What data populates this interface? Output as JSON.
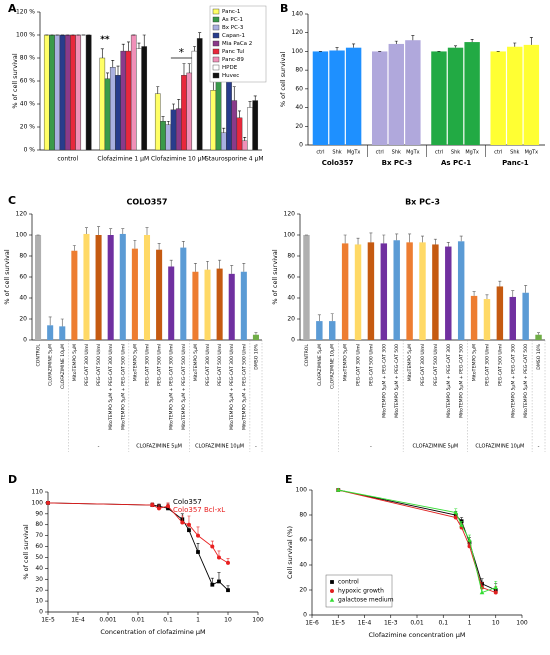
{
  "chart_data": [
    {
      "panel": "A",
      "type": "grouped-bar",
      "ylabel": "% of cell survival",
      "categories": [
        "control",
        "Clofazimine 1 μM",
        "Clofazimine 10 μM",
        "Staurosporine 4 μM"
      ],
      "series": [
        {
          "name": "Panc-1",
          "color": "#ffff66",
          "values": [
            100,
            80,
            49,
            52
          ],
          "errors": [
            0,
            8,
            6,
            10
          ]
        },
        {
          "name": "As PC-1",
          "color": "#3a9a4a",
          "values": [
            100,
            62,
            25,
            65
          ],
          "errors": [
            0,
            5,
            4,
            8
          ]
        },
        {
          "name": "Bx PC-3",
          "color": "#aab0e0",
          "values": [
            100,
            72,
            22,
            15
          ],
          "errors": [
            0,
            6,
            3,
            4
          ]
        },
        {
          "name": "Capan-1",
          "color": "#283c8c",
          "values": [
            100,
            65,
            35,
            79
          ],
          "errors": [
            0,
            8,
            5,
            6
          ]
        },
        {
          "name": "Mia PaCa 2",
          "color": "#8a3a8a",
          "values": [
            100,
            86,
            36,
            43
          ],
          "errors": [
            0,
            6,
            8,
            12
          ]
        },
        {
          "name": "Panc Tul",
          "color": "#e8283c",
          "values": [
            100,
            86,
            65,
            28
          ],
          "errors": [
            0,
            8,
            10,
            6
          ]
        },
        {
          "name": "Panc-89",
          "color": "#f090b8",
          "values": [
            100,
            100,
            67,
            8
          ],
          "errors": [
            0,
            0,
            8,
            3
          ]
        },
        {
          "name": "HPDE",
          "color": "#ffffff",
          "values": [
            100,
            88,
            86,
            37
          ],
          "errors": [
            0,
            5,
            4,
            5
          ]
        },
        {
          "name": "Huvec",
          "color": "#111111",
          "values": [
            100,
            90,
            97,
            43
          ],
          "errors": [
            0,
            10,
            5,
            4
          ]
        }
      ],
      "annotations": [
        "**",
        "*"
      ],
      "legend": "top-right",
      "ylim": [
        0,
        120
      ],
      "yticks": [
        {
          "value": 0,
          "label": "0 %"
        },
        {
          "value": 20,
          "label": "20 %"
        },
        {
          "value": 40,
          "label": "40 %"
        },
        {
          "value": 60,
          "label": "60 %"
        },
        {
          "value": 80,
          "label": "80 %"
        },
        {
          "value": 100,
          "label": "100 %"
        },
        {
          "value": 120,
          "label": "120 %"
        }
      ]
    },
    {
      "panel": "B",
      "type": "bar",
      "ylabel": "% of cell survival",
      "categories": [
        "ctrl",
        "Shk",
        "MgTx"
      ],
      "series": [
        {
          "name": "Colo357",
          "color": "#1e90ff",
          "values": [
            100,
            101,
            104
          ],
          "errors": [
            0,
            3,
            4
          ]
        },
        {
          "name": "Bx PC-3",
          "color": "#b0a8dc",
          "values": [
            100,
            108,
            112
          ],
          "errors": [
            0,
            3,
            5
          ]
        },
        {
          "name": "As PC-1",
          "color": "#22aa44",
          "values": [
            100,
            104,
            110
          ],
          "errors": [
            0,
            2,
            3
          ]
        },
        {
          "name": "Panc-1",
          "color": "#ffff33",
          "values": [
            100,
            105,
            107
          ],
          "errors": [
            0,
            4,
            8
          ]
        }
      ],
      "ylim": [
        0,
        140
      ],
      "yticks": [
        0,
        20,
        40,
        60,
        80,
        100,
        120,
        140
      ]
    },
    {
      "panel": "C",
      "type": "bar",
      "title": "COLO357",
      "ylabel": "% of cell survival",
      "categories": [
        "CONTROL",
        "CLOFAZIMINE 5μM",
        "CLOFAZIMINE 10μM",
        "MitoTEMPO 5μM",
        "PEG-CAT 300 U/ml",
        "PEG-CAT 500 U/ml",
        "MitoTEMPO 5μM + PEG-CAT 300 U/ml",
        "MitoTEMPO 5μM + PEG-CAT 500 U/ml",
        "MitoTEMPO 5μM",
        "PEG-CAT 300 U/ml",
        "PEG-CAT 500 U/ml",
        "MitoTEMPO 5μM + PEG-CAT 300 U/ml",
        "MitoTEMPO 5μM + PEG-CAT 500 U/ml",
        "MitoTEMPO 5μM",
        "PEG-CAT 300 U/ml",
        "PEG-CAT 500 U/ml",
        "MitoTEMPO 5μM + PEG-CAT 300 U/ml",
        "MitoTEMPO 5μM + PEG-CAT 500 U/ml",
        "DMSO 10%"
      ],
      "values": [
        100,
        14,
        13,
        85,
        101,
        100,
        100,
        101,
        87,
        100,
        86,
        70,
        88,
        65,
        67,
        68,
        63,
        65,
        5
      ],
      "errors": [
        0,
        8,
        7,
        5,
        6,
        8,
        6,
        5,
        8,
        7,
        6,
        6,
        6,
        8,
        8,
        8,
        8,
        8,
        2
      ],
      "colors": [
        "#b0b0b0",
        "#5b9bd5",
        "#5b9bd5",
        "#ed7d31",
        "#ffd966",
        "#c55a11",
        "#7030a0",
        "#5b9bd5",
        "#ed7d31",
        "#ffd966",
        "#c55a11",
        "#7030a0",
        "#5b9bd5",
        "#ed7d31",
        "#ffd966",
        "#c55a11",
        "#7030a0",
        "#5b9bd5",
        "#70ad47"
      ],
      "groups": [
        "-",
        "CLOFAZIMINE 5μM",
        "CLOFAZIMINE 10μM",
        "-"
      ],
      "ylim": [
        0,
        120
      ],
      "yticks": [
        0,
        20,
        40,
        60,
        80,
        100,
        120
      ]
    },
    {
      "type": "bar",
      "title": "Bx PC-3",
      "ylabel": "% of cell survival",
      "categories": [
        "CONTROL",
        "CLOFAZIMINE 5μM",
        "CLOFAZIMINE 10μM",
        "MitoTEMPO 5μM",
        "PEG-CAT 300 U/ml",
        "PEG-CAT 500 U/ml",
        "MitoTEMPO 5μM + PEG-CAT 300",
        "MitoTEMPO 5μM + PEG-CAT 500",
        "MitoTEMPO 5μM",
        "PEG-CAT 300 U/ml",
        "PEG-CAT 500 U/ml",
        "MitoTEMPO 5μM + PEG-CAT 300",
        "MitoTEMPO 5μM + PEG-CAT 500",
        "MitoTEMPO 5μM",
        "PEG-CAT 300 U/ml",
        "PEG-CAT 500 U/ml",
        "MitoTEMPO 5μM + PEG-CAT 300",
        "MitoTEMPO 5μM + PEG-CAT 500",
        "DMSO 10%"
      ],
      "values": [
        100,
        18,
        18,
        92,
        91,
        93,
        92,
        95,
        93,
        93,
        91,
        89,
        94,
        42,
        39,
        51,
        41,
        45,
        5
      ],
      "errors": [
        0,
        6,
        7,
        8,
        6,
        9,
        8,
        6,
        8,
        6,
        5,
        4,
        5,
        4,
        4,
        5,
        6,
        7,
        2
      ],
      "colors": [
        "#b0b0b0",
        "#5b9bd5",
        "#5b9bd5",
        "#ed7d31",
        "#ffd966",
        "#c55a11",
        "#7030a0",
        "#5b9bd5",
        "#ed7d31",
        "#ffd966",
        "#c55a11",
        "#7030a0",
        "#5b9bd5",
        "#ed7d31",
        "#ffd966",
        "#c55a11",
        "#7030a0",
        "#5b9bd5",
        "#70ad47"
      ],
      "groups": [
        "-",
        "CLOFAZIMINE 5μM",
        "CLOFAZIMINE 10μM",
        "-"
      ],
      "ylim": [
        0,
        120
      ],
      "yticks": [
        0,
        20,
        40,
        60,
        80,
        100,
        120
      ]
    },
    {
      "panel": "D",
      "type": "scatter",
      "xscale": "log",
      "legend": "top-right",
      "xlabel": "Concentration of clofazimine μM",
      "ylabel": "% of cell survival",
      "series": [
        {
          "name": "Colo357",
          "color": "#000000",
          "marker": "square",
          "x": [
            1e-05,
            0.03,
            0.05,
            0.1,
            0.3,
            0.5,
            1,
            3,
            5,
            10
          ],
          "values": [
            100,
            98,
            97,
            95,
            85,
            75,
            55,
            25,
            28,
            20
          ],
          "errors": [
            1,
            2,
            2,
            4,
            5,
            5,
            8,
            6,
            8,
            4
          ]
        },
        {
          "name": "Colo357 Bcl-xL",
          "color": "#e82020",
          "marker": "circle",
          "x": [
            1e-05,
            0.03,
            0.05,
            0.1,
            0.3,
            0.5,
            1,
            3,
            5,
            10
          ],
          "values": [
            100,
            98,
            95,
            97,
            82,
            80,
            70,
            60,
            50,
            45
          ],
          "errors": [
            1,
            2,
            3,
            3,
            6,
            8,
            8,
            5,
            6,
            4
          ]
        }
      ],
      "xlim": [
        1e-05,
        100
      ],
      "xticks": [
        {
          "value": 1e-05,
          "label": "1E-5"
        },
        {
          "value": 0.0001,
          "label": "1E-4"
        },
        0.001,
        0.01,
        0.1,
        1,
        10,
        100
      ],
      "ylim": [
        0,
        110
      ],
      "yticks": [
        0,
        10,
        20,
        30,
        40,
        50,
        60,
        70,
        80,
        90,
        100,
        110
      ]
    },
    {
      "panel": "E",
      "type": "scatter",
      "xscale": "log",
      "legend": "bottom-left",
      "xlabel": "Clofazimine concentration μM",
      "ylabel": "Cell survival (%)",
      "series": [
        {
          "name": "control",
          "color": "#000000",
          "marker": "square",
          "x": [
            1e-05,
            0.3,
            0.5,
            1,
            3,
            10
          ],
          "values": [
            100,
            80,
            75,
            58,
            25,
            20
          ],
          "errors": [
            1,
            3,
            3,
            4,
            4,
            5
          ]
        },
        {
          "name": "hypoxic growth",
          "color": "#e02020",
          "marker": "circle",
          "x": [
            1e-05,
            0.3,
            0.5,
            1,
            3,
            10
          ],
          "values": [
            100,
            78,
            70,
            55,
            22,
            18
          ],
          "errors": [
            1,
            3,
            3,
            4,
            4,
            5
          ]
        },
        {
          "name": "galactose medium",
          "color": "#33dd33",
          "marker": "triangle",
          "x": [
            1e-05,
            0.3,
            0.5,
            1,
            3,
            10
          ],
          "values": [
            100,
            82,
            72,
            60,
            18,
            22
          ],
          "errors": [
            1,
            3,
            3,
            4,
            4,
            5
          ]
        }
      ],
      "xlim": [
        1e-06,
        100
      ],
      "xticks": [
        {
          "value": 1e-06,
          "label": "1E-6"
        },
        {
          "value": 1e-05,
          "label": "1E-5"
        },
        {
          "value": 0.0001,
          "label": "1E-4"
        },
        {
          "value": 0.001,
          "label": "1E-3"
        },
        {
          "value": 0.01,
          "label": "0,01"
        },
        {
          "value": 0.1,
          "label": "0,1"
        },
        1,
        10,
        100
      ],
      "ylim": [
        0,
        100
      ],
      "yticks": [
        0,
        20,
        40,
        60,
        80,
        100
      ]
    }
  ]
}
